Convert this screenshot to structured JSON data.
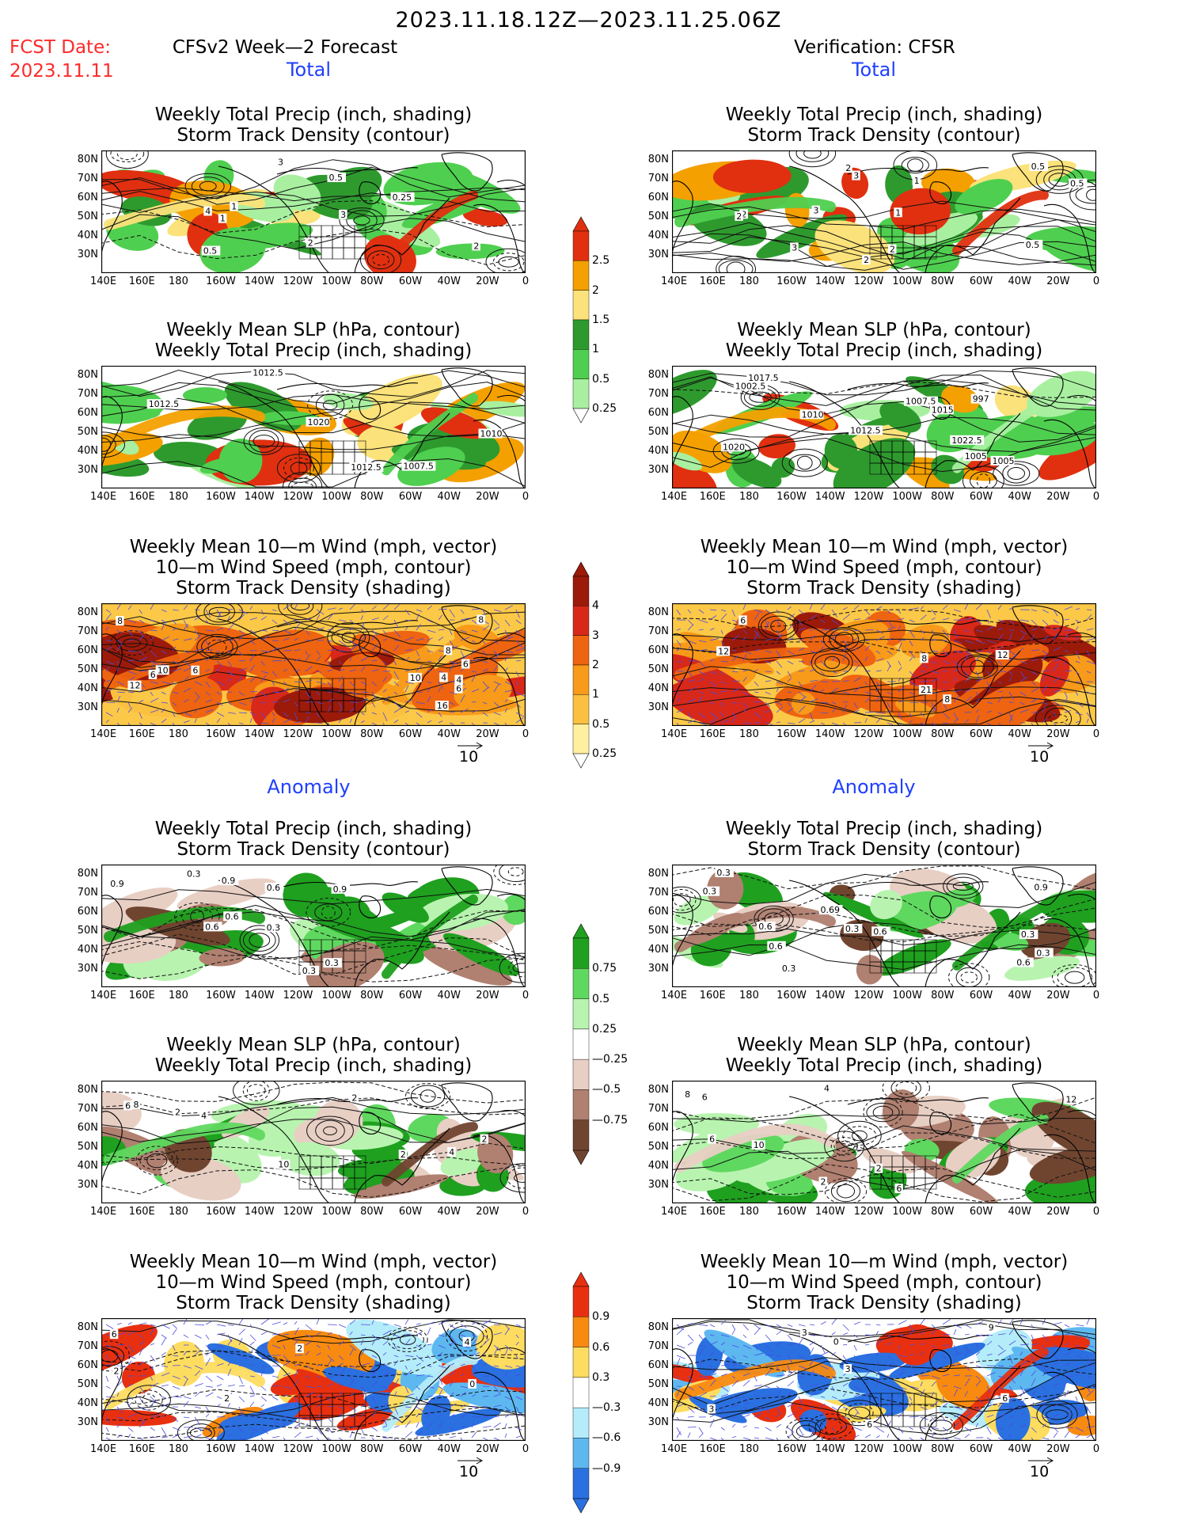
{
  "title": "2023.11.18.12Z—2023.11.25.06Z",
  "fcst_label": "FCST Date:",
  "fcst_date": "2023.11.11",
  "left_header": "CFSv2 Week—2 Forecast",
  "right_header": "Verification: CFSR",
  "section_total": "Total",
  "section_anomaly": "Anomaly",
  "panel_titles": {
    "precip_storm": [
      "Weekly Total Precip (inch, shading)",
      "Storm Track Density (contour)"
    ],
    "slp_precip": [
      "Weekly Mean SLP (hPa, contour)",
      "Weekly Total Precip (inch, shading)"
    ],
    "wind_storm": [
      "Weekly Mean 10—m Wind (mph, vector)",
      "10—m Wind Speed (mph, contour)",
      "Storm Track Density (shading)"
    ]
  },
  "lon_labels": [
    "140E",
    "160E",
    "180",
    "160W",
    "140W",
    "120W",
    "100W",
    "80W",
    "60W",
    "40W",
    "20W",
    "0"
  ],
  "lat_labels": [
    "80N",
    "70N",
    "60N",
    "50N",
    "40N",
    "30N"
  ],
  "vector_ref": "10",
  "colorbars": {
    "precip_total": {
      "labels": [
        "2.5",
        "2",
        "1.5",
        "1",
        "0.5",
        "0.25"
      ],
      "colors": [
        "#e03010",
        "#f4a000",
        "#fbe27a",
        "#2e9a2e",
        "#4fcf4f",
        "#a8f0a0"
      ]
    },
    "storm_total": {
      "labels": [
        "4",
        "3",
        "2",
        "1",
        "0.5",
        "0.25"
      ],
      "colors": [
        "#9c1a0a",
        "#d8281a",
        "#ee6410",
        "#f89a1a",
        "#fcc040",
        "#fff0a0"
      ]
    },
    "precip_anom": {
      "labels": [
        "0.75",
        "0.5",
        "0.25",
        "—0.25",
        "—0.5",
        "—0.75"
      ],
      "colors": [
        "#1fa01f",
        "#5fd85f",
        "#b8f4b0",
        "#ffffff",
        "#e8cfc4",
        "#b08070",
        "#704530"
      ]
    },
    "storm_anom": {
      "labels": [
        "0.9",
        "0.6",
        "0.3",
        "—0.3",
        "—0.6",
        "—0.9"
      ],
      "colors": [
        "#e83010",
        "#f88a10",
        "#fddc60",
        "#ffffff",
        "#b4ecfa",
        "#5eb8f0",
        "#2a70e0"
      ]
    }
  },
  "contour_labels": {
    "f_total_precip": [
      "0.5",
      "2",
      "2",
      "3",
      "4",
      "3",
      "1",
      "1",
      "0.5",
      "0.25"
    ],
    "v_total_precip": [
      "0.5",
      "2",
      "3",
      "1",
      "2",
      "2",
      "3",
      "1",
      "0.5",
      "0.5",
      "2",
      "3",
      "2"
    ],
    "f_total_slp": [
      "1012.5",
      "1010",
      "1007.5",
      "1012.5",
      "1012.5",
      "1020"
    ],
    "v_total_slp": [
      "1010",
      "1005",
      "1012.5",
      "1015",
      "1017.5",
      "1002.5",
      "997",
      "1005",
      "1007.5",
      "1022.5",
      "1020"
    ],
    "f_total_wind": [
      "4",
      "10",
      "6",
      "6",
      "8",
      "8",
      "10",
      "4",
      "6",
      "8",
      "6",
      "16",
      "12"
    ],
    "v_total_wind": [
      "12",
      "6",
      "8",
      "8",
      "12",
      "21"
    ],
    "f_anom_precip": [
      "0.3",
      "0.9",
      "0.6",
      "0.9",
      "0.6",
      "0.3",
      "0.6",
      "0.9",
      "0.3",
      "0.3"
    ],
    "v_anom_precip": [
      "0.9",
      "0.6",
      "0.3",
      "0.3",
      "0.3",
      "0.69",
      "0.3",
      "0.6",
      "0.6",
      "0.3",
      "0.3",
      "0.6"
    ],
    "f_anom_slp": [
      "2",
      "2",
      "8",
      "10",
      "4",
      "2",
      "4",
      "6",
      "2"
    ],
    "v_anom_slp": [
      "2",
      "8",
      "10",
      "6",
      "12",
      "6",
      "6",
      "4",
      "2"
    ],
    "f_anom_wind": [
      "0",
      "4",
      "2",
      "6",
      "2",
      "2"
    ],
    "v_anom_wind": [
      "6",
      "0",
      "3",
      "3",
      "3",
      "9",
      "6"
    ]
  }
}
